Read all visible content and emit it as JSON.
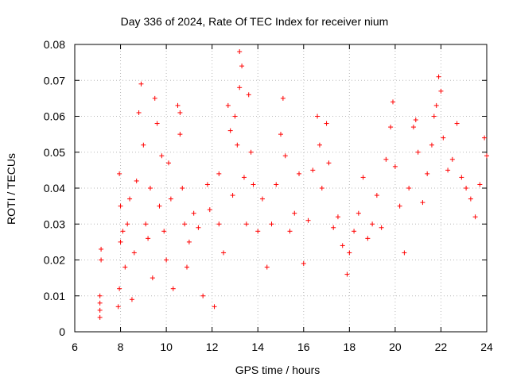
{
  "chart_data": {
    "type": "scatter",
    "title": "Day 336 of 2024, Rate Of TEC Index for receiver nium",
    "xlabel": "GPS time / hours",
    "ylabel": "ROTI / TECUs",
    "xlim": [
      6,
      24
    ],
    "ylim": [
      0,
      0.08
    ],
    "xticks": [
      6,
      8,
      10,
      12,
      14,
      16,
      18,
      20,
      22,
      24
    ],
    "yticks": [
      0,
      0.01,
      0.02,
      0.03,
      0.04,
      0.05,
      0.06,
      0.07,
      0.08
    ],
    "ytick_labels": [
      "0",
      "0.01",
      "0.02",
      "0.03",
      "0.04",
      "0.05",
      "0.06",
      "0.07",
      "0.08"
    ],
    "grid": true,
    "marker": "+",
    "series": [
      {
        "name": "ROTI",
        "color": "#ff0000",
        "points": [
          [
            7.1,
            0.004
          ],
          [
            7.1,
            0.006
          ],
          [
            7.1,
            0.008
          ],
          [
            7.1,
            0.01
          ],
          [
            7.15,
            0.02
          ],
          [
            7.15,
            0.023
          ],
          [
            7.9,
            0.007
          ],
          [
            7.95,
            0.012
          ],
          [
            8.0,
            0.025
          ],
          [
            8.0,
            0.035
          ],
          [
            7.95,
            0.044
          ],
          [
            8.1,
            0.028
          ],
          [
            8.2,
            0.018
          ],
          [
            8.3,
            0.03
          ],
          [
            8.4,
            0.037
          ],
          [
            8.5,
            0.009
          ],
          [
            8.6,
            0.022
          ],
          [
            8.7,
            0.042
          ],
          [
            8.8,
            0.061
          ],
          [
            8.9,
            0.069
          ],
          [
            9.0,
            0.052
          ],
          [
            9.1,
            0.03
          ],
          [
            9.2,
            0.026
          ],
          [
            9.3,
            0.04
          ],
          [
            9.4,
            0.015
          ],
          [
            9.5,
            0.065
          ],
          [
            9.6,
            0.058
          ],
          [
            9.7,
            0.035
          ],
          [
            9.8,
            0.049
          ],
          [
            9.9,
            0.028
          ],
          [
            10.0,
            0.02
          ],
          [
            10.1,
            0.047
          ],
          [
            10.2,
            0.037
          ],
          [
            10.3,
            0.012
          ],
          [
            10.5,
            0.063
          ],
          [
            10.6,
            0.061
          ],
          [
            10.6,
            0.055
          ],
          [
            10.7,
            0.04
          ],
          [
            10.8,
            0.03
          ],
          [
            10.9,
            0.018
          ],
          [
            11.0,
            0.025
          ],
          [
            11.2,
            0.033
          ],
          [
            11.4,
            0.029
          ],
          [
            11.6,
            0.01
          ],
          [
            11.8,
            0.041
          ],
          [
            11.9,
            0.034
          ],
          [
            12.1,
            0.007
          ],
          [
            12.3,
            0.03
          ],
          [
            12.3,
            0.044
          ],
          [
            12.5,
            0.022
          ],
          [
            12.7,
            0.063
          ],
          [
            12.8,
            0.056
          ],
          [
            12.9,
            0.038
          ],
          [
            13.0,
            0.06
          ],
          [
            13.1,
            0.052
          ],
          [
            13.2,
            0.078
          ],
          [
            13.3,
            0.074
          ],
          [
            13.2,
            0.068
          ],
          [
            13.4,
            0.043
          ],
          [
            13.5,
            0.03
          ],
          [
            13.6,
            0.066
          ],
          [
            13.7,
            0.05
          ],
          [
            13.8,
            0.041
          ],
          [
            14.0,
            0.028
          ],
          [
            14.2,
            0.037
          ],
          [
            14.4,
            0.018
          ],
          [
            14.6,
            0.03
          ],
          [
            14.8,
            0.041
          ],
          [
            15.0,
            0.055
          ],
          [
            15.1,
            0.065
          ],
          [
            15.2,
            0.049
          ],
          [
            15.4,
            0.028
          ],
          [
            15.6,
            0.033
          ],
          [
            15.8,
            0.044
          ],
          [
            16.0,
            0.019
          ],
          [
            16.2,
            0.031
          ],
          [
            16.4,
            0.045
          ],
          [
            16.6,
            0.06
          ],
          [
            16.7,
            0.052
          ],
          [
            16.8,
            0.04
          ],
          [
            17.0,
            0.058
          ],
          [
            17.1,
            0.047
          ],
          [
            17.3,
            0.029
          ],
          [
            17.5,
            0.032
          ],
          [
            17.7,
            0.024
          ],
          [
            17.9,
            0.016
          ],
          [
            18.0,
            0.022
          ],
          [
            18.2,
            0.028
          ],
          [
            18.4,
            0.033
          ],
          [
            18.6,
            0.043
          ],
          [
            18.8,
            0.026
          ],
          [
            19.0,
            0.03
          ],
          [
            19.2,
            0.038
          ],
          [
            19.4,
            0.029
          ],
          [
            19.6,
            0.048
          ],
          [
            19.8,
            0.057
          ],
          [
            19.9,
            0.064
          ],
          [
            20.0,
            0.046
          ],
          [
            20.2,
            0.035
          ],
          [
            20.4,
            0.022
          ],
          [
            20.6,
            0.04
          ],
          [
            20.8,
            0.057
          ],
          [
            20.9,
            0.059
          ],
          [
            21.0,
            0.05
          ],
          [
            21.2,
            0.036
          ],
          [
            21.4,
            0.044
          ],
          [
            21.6,
            0.052
          ],
          [
            21.7,
            0.06
          ],
          [
            21.8,
            0.063
          ],
          [
            21.9,
            0.071
          ],
          [
            22.0,
            0.067
          ],
          [
            22.1,
            0.054
          ],
          [
            22.3,
            0.045
          ],
          [
            22.5,
            0.048
          ],
          [
            22.7,
            0.058
          ],
          [
            22.9,
            0.043
          ],
          [
            23.1,
            0.04
          ],
          [
            23.3,
            0.037
          ],
          [
            23.5,
            0.032
          ],
          [
            23.7,
            0.041
          ],
          [
            23.9,
            0.054
          ],
          [
            24.0,
            0.049
          ]
        ]
      }
    ]
  }
}
